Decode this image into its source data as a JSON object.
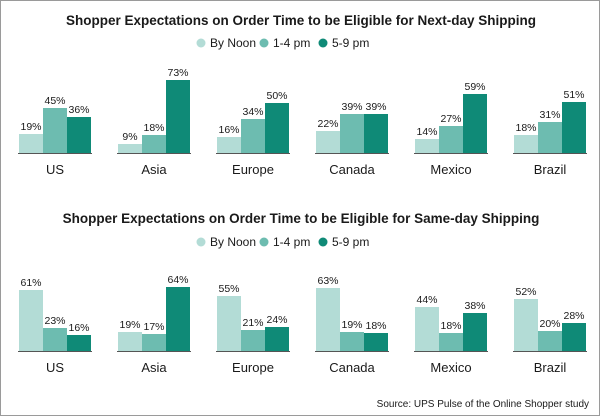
{
  "colors": {
    "by_noon": "#b3dcd6",
    "one_to_four": "#6dbcb0",
    "five_to_nine": "#0f8a77",
    "baseline": "#555555"
  },
  "source": "Source: UPS Pulse of the Online Shopper study",
  "chart_data": [
    {
      "type": "bar",
      "title": "Shopper Expectations on Order Time to be Eligible for Next-day Shipping",
      "categories": [
        "US",
        "Asia",
        "Europe",
        "Canada",
        "Mexico",
        "Brazil"
      ],
      "legend_position": "top-right",
      "series": [
        {
          "name": "By Noon",
          "values": [
            19,
            9,
            16,
            22,
            14,
            18
          ]
        },
        {
          "name": "1-4 pm",
          "values": [
            45,
            18,
            34,
            39,
            27,
            31
          ]
        },
        {
          "name": "5-9 pm",
          "values": [
            36,
            73,
            50,
            39,
            59,
            51
          ]
        }
      ],
      "value_suffix": "%",
      "ylim": [
        0,
        75
      ],
      "grid": false
    },
    {
      "type": "bar",
      "title": "Shopper Expectations on Order Time to be Eligible for Same-day Shipping",
      "categories": [
        "US",
        "Asia",
        "Europe",
        "Canada",
        "Mexico",
        "Brazil"
      ],
      "legend_position": "top-right",
      "series": [
        {
          "name": "By Noon",
          "values": [
            61,
            19,
            55,
            63,
            44,
            52
          ]
        },
        {
          "name": "1-4 pm",
          "values": [
            23,
            17,
            21,
            19,
            18,
            20
          ]
        },
        {
          "name": "5-9 pm",
          "values": [
            16,
            64,
            24,
            18,
            38,
            28
          ]
        }
      ],
      "value_suffix": "%",
      "ylim": [
        0,
        75
      ],
      "grid": false
    }
  ]
}
